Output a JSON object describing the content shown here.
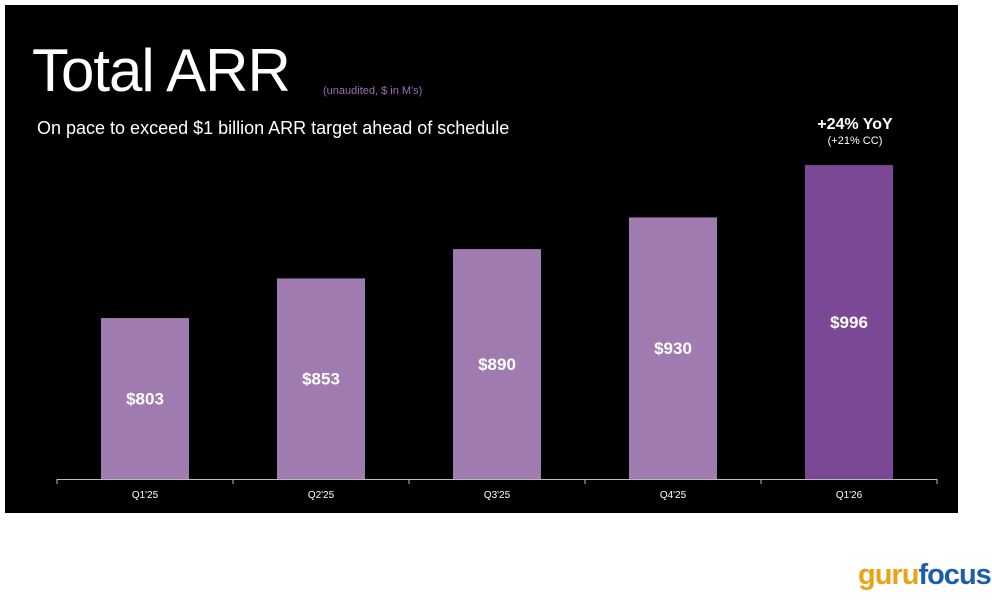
{
  "slide": {
    "title": "Total ARR",
    "note": "(unaudited, $ in M's)",
    "subtitle": "On pace to exceed $1 billion ARR target ahead of schedule",
    "callout": {
      "headline": "+24% YoY",
      "sub": "(+21% CC)"
    }
  },
  "chart_data": {
    "type": "bar",
    "title": "Total ARR",
    "categories": [
      "Q1'25",
      "Q2'25",
      "Q3'25",
      "Q4'25",
      "Q1'26"
    ],
    "values": [
      803,
      853,
      890,
      930,
      996
    ],
    "data_labels": [
      "$803",
      "$853",
      "$890",
      "$930",
      "$996"
    ],
    "unit": "$ in M's",
    "ylim": [
      600,
      1010
    ],
    "grid": false,
    "colors": {
      "bar": "#9f7bb0",
      "highlight": "#7b4896",
      "label": "#ffffff",
      "axis": "#bbbbbb"
    }
  },
  "watermark": {
    "part1": "guru",
    "part2": "focus"
  },
  "colors": {
    "background": "#000000",
    "note": "#9b6fb3"
  }
}
